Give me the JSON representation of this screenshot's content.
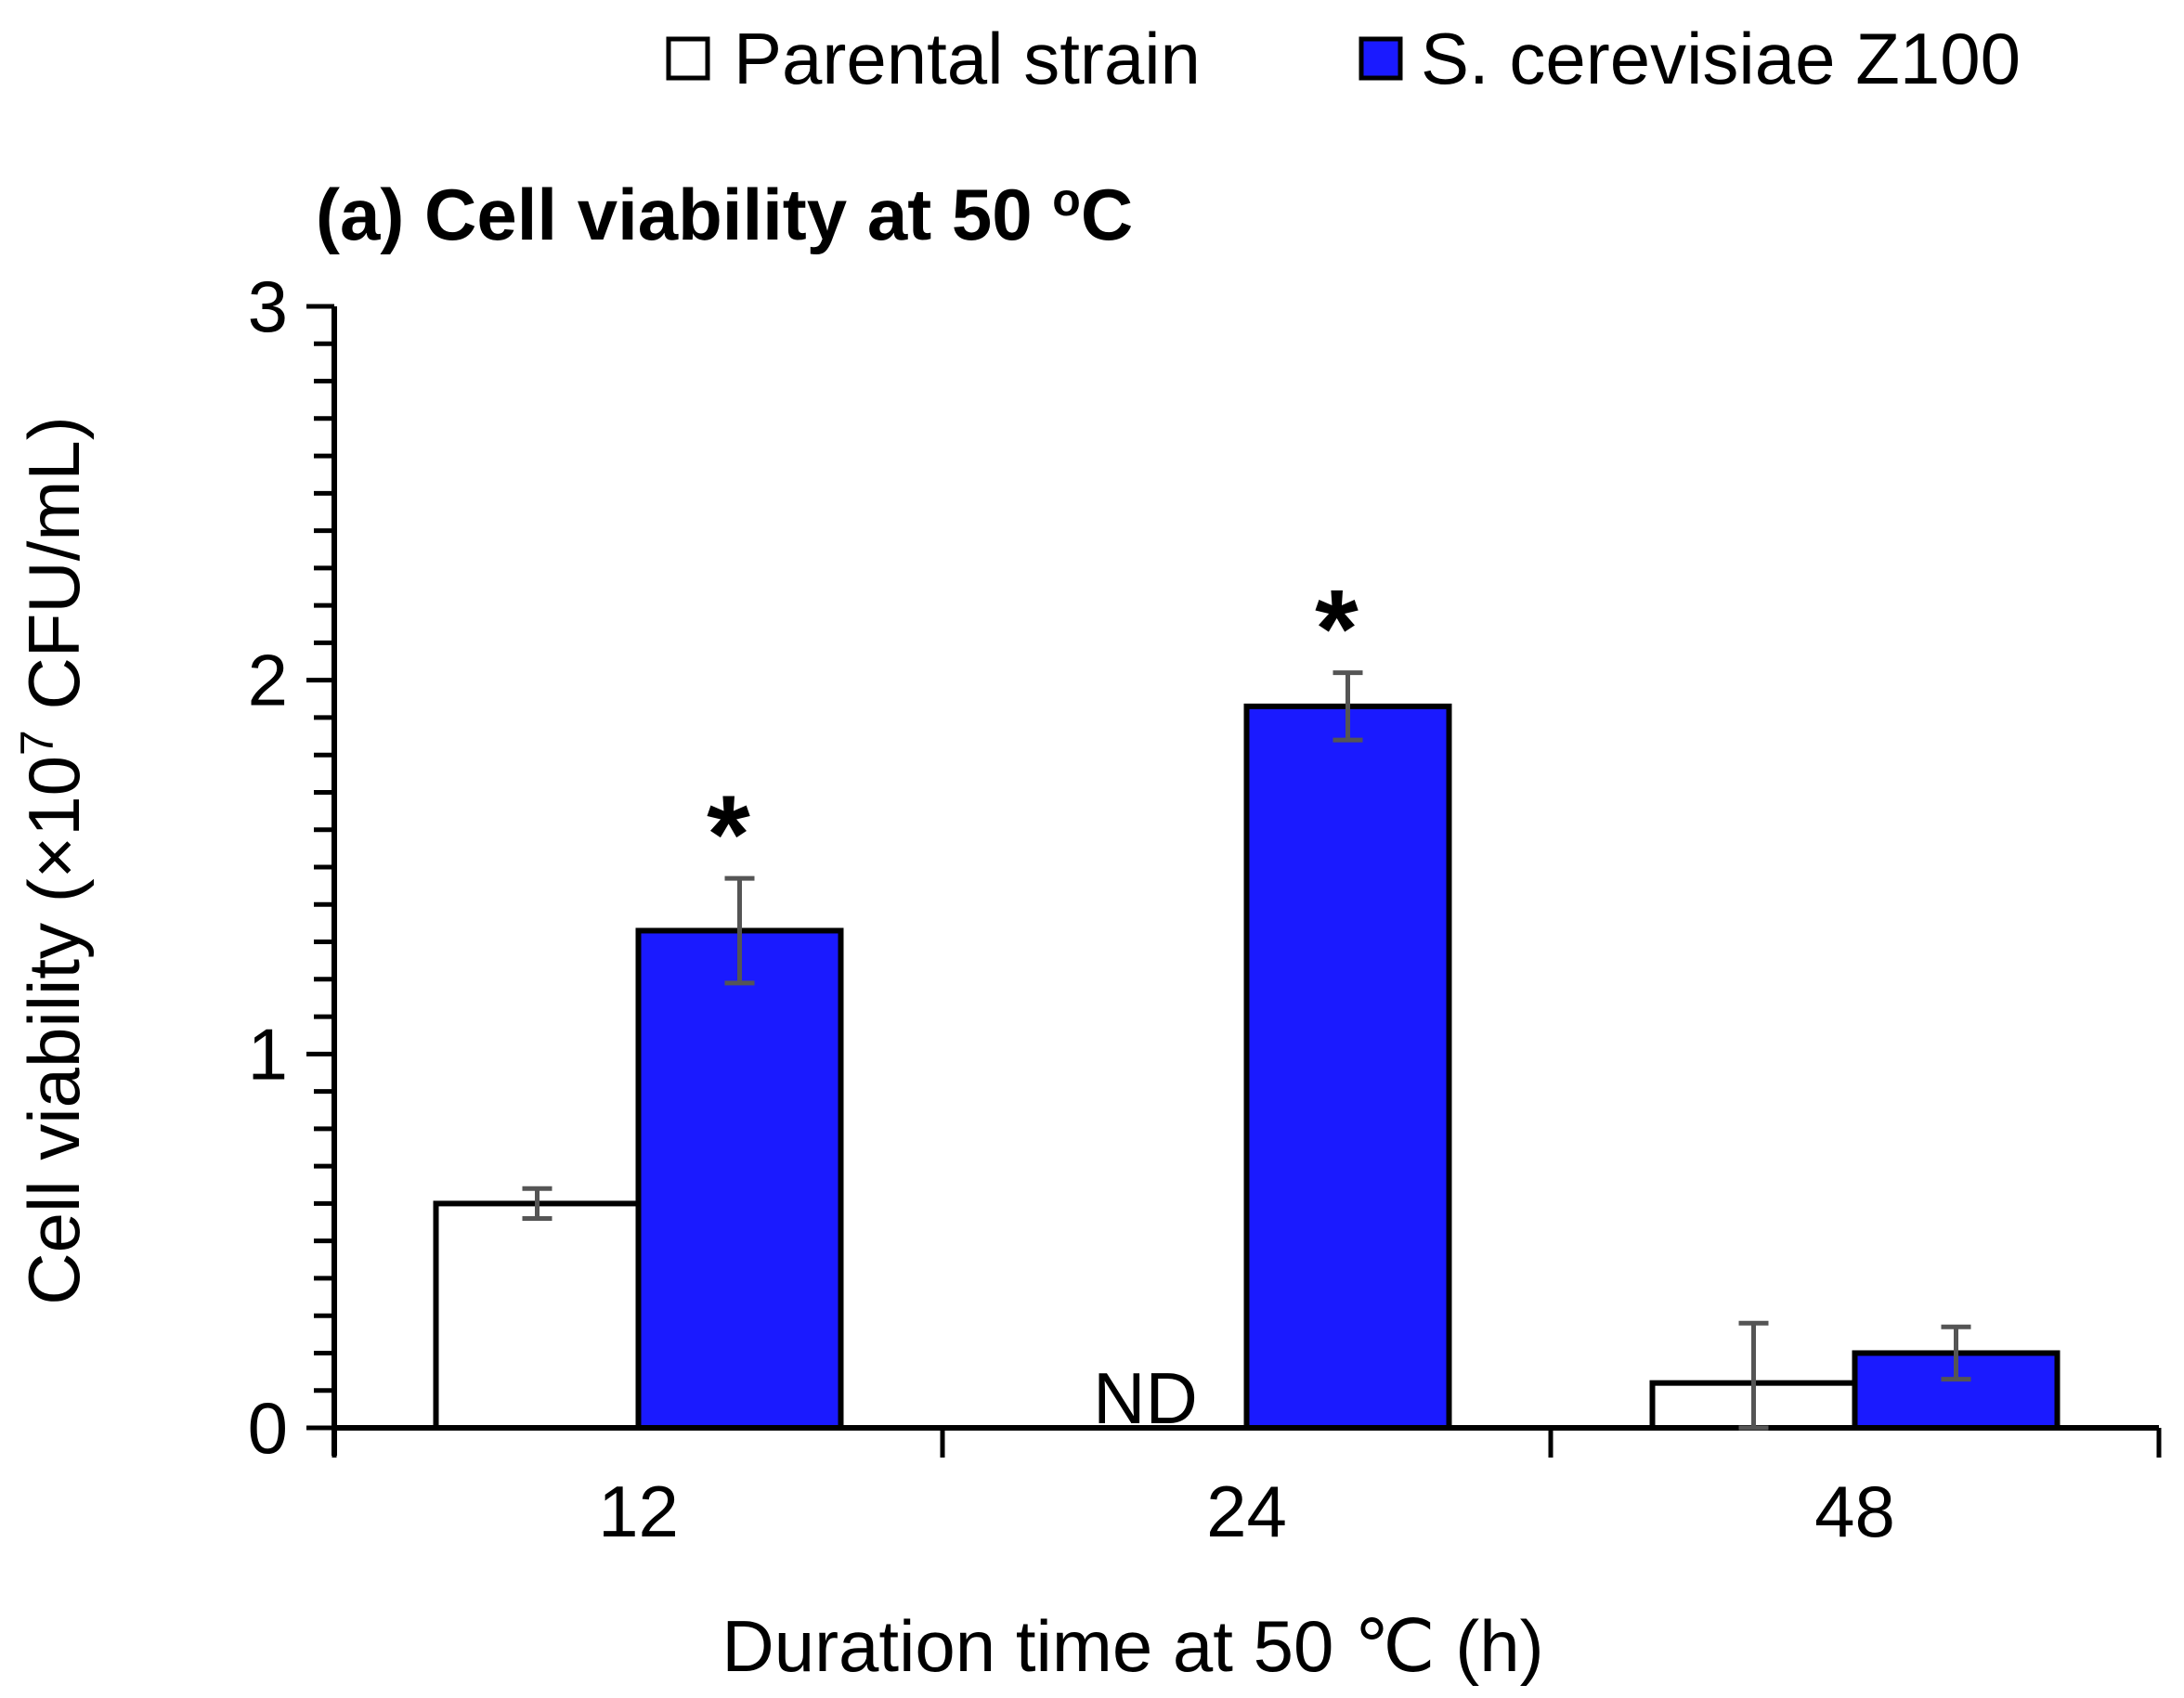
{
  "chart_data": {
    "type": "bar",
    "title_main": "(a) Cell viability at 50 ",
    "title_sup": "o",
    "title_end": "C",
    "categories": [
      "12",
      "24",
      "48"
    ],
    "series": [
      {
        "name": "Parental strain",
        "color": "#ffffff",
        "values": [
          0.6,
          0,
          0.12
        ],
        "errors": [
          0.04,
          0,
          0.16
        ],
        "labels": [
          "",
          "ND",
          ""
        ]
      },
      {
        "name": "S. cerevisiae Z100",
        "color": "#1a1aff",
        "values": [
          1.33,
          1.93,
          0.2
        ],
        "errors": [
          0.14,
          0.09,
          0.07
        ],
        "labels": [
          "*",
          "*",
          ""
        ]
      }
    ],
    "ylim": [
      0,
      3
    ],
    "yticks": [
      "0",
      "1",
      "2",
      "3"
    ],
    "ylabel_pre": "Cell viability (×10",
    "ylabel_sup": "7",
    "ylabel_post": " CFU/mL)",
    "xlabel": "Duration time at 50 ℃ (h)",
    "legend_position": "top-right",
    "grid": false,
    "error_color": "#555555"
  }
}
